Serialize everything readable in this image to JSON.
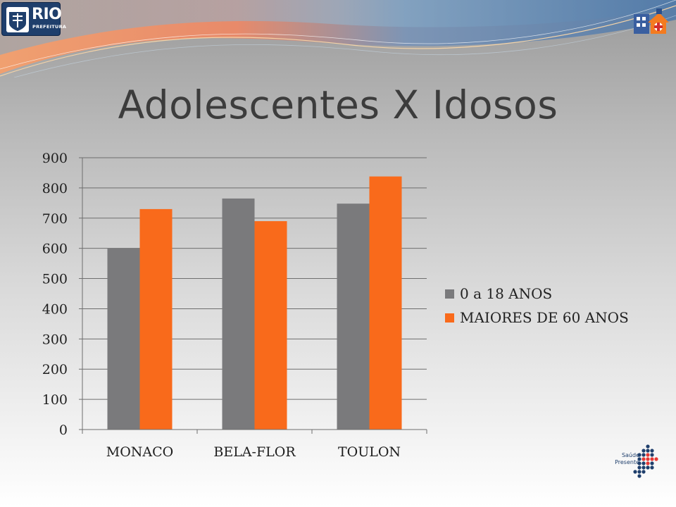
{
  "header": {
    "logo_text": "RIO",
    "logo_subtext": "PREFEITURA"
  },
  "slide": {
    "title": "Adolescentes X Idosos"
  },
  "footer": {
    "saude_logo_text": "Saúde Presente"
  },
  "colors": {
    "series_gray": "#7a7a7c",
    "series_orange": "#f96a1b",
    "title_text": "#3c3c3c"
  },
  "chart_data": {
    "type": "bar",
    "title": "",
    "xlabel": "",
    "ylabel": "",
    "categories": [
      "MONACO",
      "BELA-FLOR",
      "TOULON"
    ],
    "series": [
      {
        "name": "0 a 18 ANOS",
        "values": [
          600,
          765,
          748
        ],
        "color": "#7a7a7c"
      },
      {
        "name": "MAIORES DE 60 ANOS",
        "values": [
          730,
          690,
          838
        ],
        "color": "#f96a1b"
      }
    ],
    "ylim": [
      0,
      900
    ],
    "yticks": [
      "0",
      "100",
      "200",
      "300",
      "400",
      "500",
      "600",
      "700",
      "800",
      "900"
    ],
    "grid": true,
    "legend_position": "right"
  }
}
